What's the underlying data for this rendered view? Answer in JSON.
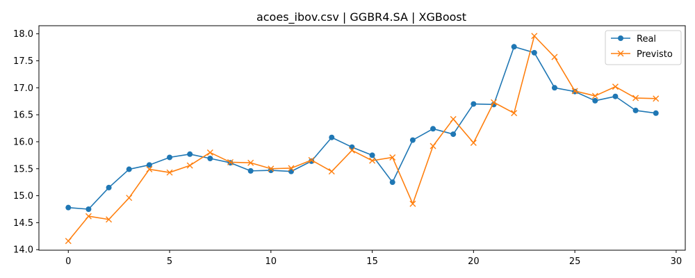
{
  "chart_data": {
    "type": "line",
    "title": "acoes_ibov.csv | GGBR4.SA | XGBoost",
    "xlabel": "",
    "ylabel": "",
    "xlim": [
      -1.45,
      30.45
    ],
    "ylim": [
      13.99,
      18.15
    ],
    "xticks": [
      0,
      5,
      10,
      15,
      20,
      25,
      30
    ],
    "yticks": [
      14.0,
      14.5,
      15.0,
      15.5,
      16.0,
      16.5,
      17.0,
      17.5,
      18.0
    ],
    "xtick_labels": [
      "0",
      "5",
      "10",
      "15",
      "20",
      "25",
      "30"
    ],
    "ytick_labels": [
      "14.0",
      "14.5",
      "15.0",
      "15.5",
      "16.0",
      "16.5",
      "17.0",
      "17.5",
      "18.0"
    ],
    "legend": "top-right",
    "grid": false,
    "x": [
      0,
      1,
      2,
      3,
      4,
      5,
      6,
      7,
      8,
      9,
      10,
      11,
      12,
      13,
      14,
      15,
      16,
      17,
      18,
      19,
      20,
      21,
      22,
      23,
      24,
      25,
      26,
      27,
      28,
      29
    ],
    "series": [
      {
        "name": "Real",
        "color": "#1f77b4",
        "marker": "circle",
        "values": [
          14.78,
          14.75,
          15.15,
          15.49,
          15.57,
          15.71,
          15.77,
          15.69,
          15.61,
          15.46,
          15.47,
          15.45,
          15.64,
          16.08,
          15.9,
          15.75,
          15.25,
          16.03,
          16.24,
          16.14,
          16.7,
          16.69,
          17.76,
          17.65,
          17.0,
          16.93,
          16.76,
          16.84,
          16.58,
          16.53
        ]
      },
      {
        "name": "Previsto",
        "color": "#ff7f0e",
        "marker": "x",
        "values": [
          14.16,
          14.62,
          14.56,
          14.96,
          15.49,
          15.43,
          15.56,
          15.8,
          15.62,
          15.61,
          15.5,
          15.51,
          15.66,
          15.45,
          15.84,
          15.65,
          15.71,
          14.85,
          15.92,
          16.42,
          15.98,
          16.73,
          16.53,
          17.96,
          17.57,
          16.94,
          16.85,
          17.02,
          16.81,
          16.8
        ]
      }
    ]
  }
}
